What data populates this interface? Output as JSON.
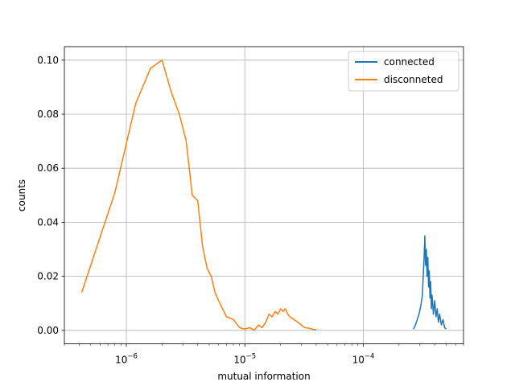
{
  "chart_data": {
    "type": "line",
    "title": "",
    "xlabel": "mutual information",
    "ylabel": "counts",
    "xscale": "log",
    "xlim": [
      3e-07,
      0.0007
    ],
    "ylim": [
      -0.005,
      0.105
    ],
    "grid": true,
    "legend_position": "top-right",
    "x_ticks": [
      {
        "value": 1e-06,
        "base": "10",
        "exp": "−6"
      },
      {
        "value": 1e-05,
        "base": "10",
        "exp": "−5"
      },
      {
        "value": 0.0001,
        "base": "10",
        "exp": "−4"
      }
    ],
    "y_ticks": [
      {
        "value": 0.0,
        "label": "0.00"
      },
      {
        "value": 0.02,
        "label": "0.02"
      },
      {
        "value": 0.04,
        "label": "0.04"
      },
      {
        "value": 0.06,
        "label": "0.06"
      },
      {
        "value": 0.08,
        "label": "0.08"
      },
      {
        "value": 0.1,
        "label": "0.10"
      }
    ],
    "series": [
      {
        "name": "connected",
        "color": "#1f77b4",
        "x": [
          0.000265,
          0.000275,
          0.000285,
          0.000295,
          0.000305,
          0.000315,
          0.00032,
          0.000325,
          0.00033,
          0.000335,
          0.00034,
          0.000345,
          0.00035,
          0.000355,
          0.00036,
          0.000365,
          0.00037,
          0.000375,
          0.00038,
          0.00039,
          0.0004,
          0.00041,
          0.00042,
          0.00043,
          0.00044,
          0.000455,
          0.00047,
          0.000485,
          0.0005
        ],
        "y": [
          0.0005,
          0.002,
          0.004,
          0.006,
          0.009,
          0.013,
          0.02,
          0.026,
          0.035,
          0.024,
          0.03,
          0.02,
          0.027,
          0.016,
          0.022,
          0.012,
          0.018,
          0.008,
          0.013,
          0.006,
          0.011,
          0.005,
          0.008,
          0.003,
          0.006,
          0.002,
          0.004,
          0.001,
          0.0005
        ]
      },
      {
        "name": "disconneted",
        "color": "#ff7f0e",
        "x": [
          4.2e-07,
          8e-07,
          1.2e-06,
          1.6e-06,
          2e-06,
          2.4e-06,
          2.8e-06,
          3.2e-06,
          3.6e-06,
          4e-06,
          4.4e-06,
          4.8e-06,
          5.2e-06,
          5.6e-06,
          6e-06,
          7e-06,
          8e-06,
          9e-06,
          1e-05,
          1.1e-05,
          1.2e-05,
          1.3e-05,
          1.4e-05,
          1.5e-05,
          1.6e-05,
          1.7e-05,
          1.8e-05,
          1.9e-05,
          2e-05,
          2.1e-05,
          2.2e-05,
          2.3e-05,
          2.4e-05,
          2.6e-05,
          2.8e-05,
          3e-05,
          3.2e-05,
          3.5e-05,
          3.8e-05,
          4e-05
        ],
        "y": [
          0.014,
          0.051,
          0.084,
          0.097,
          0.1,
          0.088,
          0.08,
          0.07,
          0.05,
          0.048,
          0.031,
          0.023,
          0.02,
          0.014,
          0.011,
          0.005,
          0.004,
          0.001,
          0.0005,
          0.001,
          0.0,
          0.002,
          0.001,
          0.003,
          0.006,
          0.005,
          0.007,
          0.006,
          0.008,
          0.007,
          0.008,
          0.006,
          0.005,
          0.004,
          0.003,
          0.002,
          0.001,
          0.0008,
          0.0003,
          0.0003
        ]
      }
    ]
  }
}
